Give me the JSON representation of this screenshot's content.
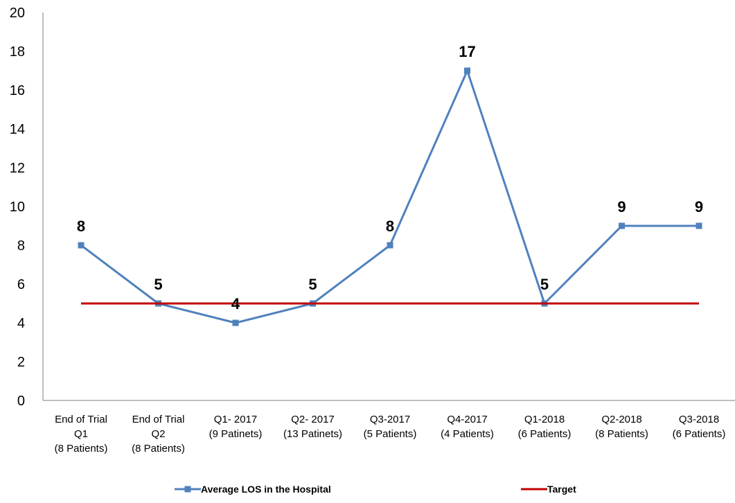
{
  "chart_data": {
    "type": "line",
    "title": "",
    "xlabel": "",
    "ylabel": "",
    "ylim": [
      0,
      20
    ],
    "yticks": [
      0,
      2,
      4,
      6,
      8,
      10,
      12,
      14,
      16,
      18,
      20
    ],
    "grid": false,
    "legend_position": "bottom",
    "categories": [
      [
        "End of Trial",
        "Q1",
        "(8 Patients)"
      ],
      [
        "End of Trial",
        "Q2",
        "(8 Patients)"
      ],
      [
        "Q1- 2017",
        "(9 Patinets)"
      ],
      [
        "Q2- 2017",
        "(13 Patinets)"
      ],
      [
        "Q3-2017",
        "(5 Patients)"
      ],
      [
        "Q4-2017",
        "(4 Patients)"
      ],
      [
        "Q1-2018",
        "(6 Patients)"
      ],
      [
        "Q2-2018",
        "(8 Patients)"
      ],
      [
        "Q3-2018",
        "(6 Patients)"
      ]
    ],
    "series": [
      {
        "name": "Average LOS in the Hospital",
        "color": "#4f81bd",
        "marker": "square",
        "values": [
          8,
          5,
          4,
          5,
          8,
          17,
          5,
          9,
          9
        ],
        "data_labels": [
          "8",
          "5",
          "4",
          "5",
          "8",
          "17",
          "5",
          "9",
          "9"
        ]
      },
      {
        "name": "Target",
        "color": "#c00000",
        "marker": "none",
        "values": [
          5,
          5,
          5,
          5,
          5,
          5,
          5,
          5,
          5
        ]
      }
    ]
  }
}
